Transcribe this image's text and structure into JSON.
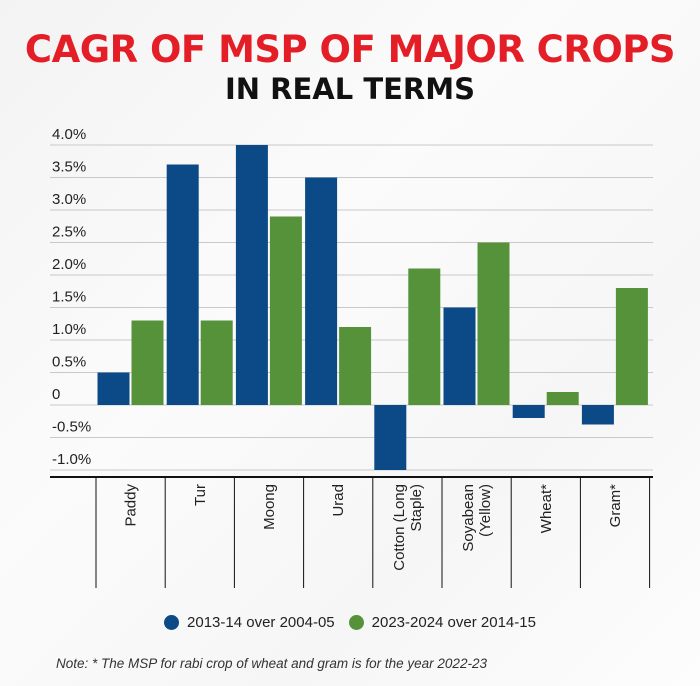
{
  "chart_data": {
    "type": "bar",
    "title": "CAGR OF MSP OF MAJOR CROPS",
    "subtitle": "IN REAL TERMS",
    "categories": [
      "Paddy",
      "Tur",
      "Moong",
      "Urad",
      "Cotton (Long Staple)",
      "Soyabean (Yellow)",
      "Wheat*",
      "Gram*"
    ],
    "category_lines": [
      [
        "Paddy"
      ],
      [
        "Tur"
      ],
      [
        "Moong"
      ],
      [
        "Urad"
      ],
      [
        "Cotton (Long",
        "Staple)"
      ],
      [
        "Soyabean",
        "(Yellow)"
      ],
      [
        "Wheat*"
      ],
      [
        "Gram*"
      ]
    ],
    "series": [
      {
        "name": "2013-14 over 2004-05",
        "color": "#0b4a86",
        "values": [
          0.5,
          3.7,
          4.0,
          3.5,
          -1.0,
          1.5,
          -0.2,
          -0.3
        ]
      },
      {
        "name": "2023-2024 over 2014-15",
        "color": "#56923a",
        "values": [
          1.3,
          1.3,
          2.9,
          1.2,
          2.1,
          2.5,
          0.2,
          1.8
        ]
      }
    ],
    "ylim": [
      -1.0,
      4.0
    ],
    "yticks": [
      4.0,
      3.5,
      3.0,
      2.5,
      2.0,
      1.5,
      1.0,
      0.5,
      0,
      -0.5,
      -1.0
    ],
    "ytick_labels": [
      "4.0%",
      "3.5%",
      "3.0%",
      "2.5%",
      "2.0%",
      "1.5%",
      "1.0%",
      "0.5%",
      "0",
      "-0.5%",
      "-1.0%"
    ],
    "xlabel": "",
    "ylabel": "",
    "grid": true,
    "legend_position": "bottom",
    "note": "Note: * The MSP for rabi crop of wheat and gram is for the year 2022-23"
  }
}
